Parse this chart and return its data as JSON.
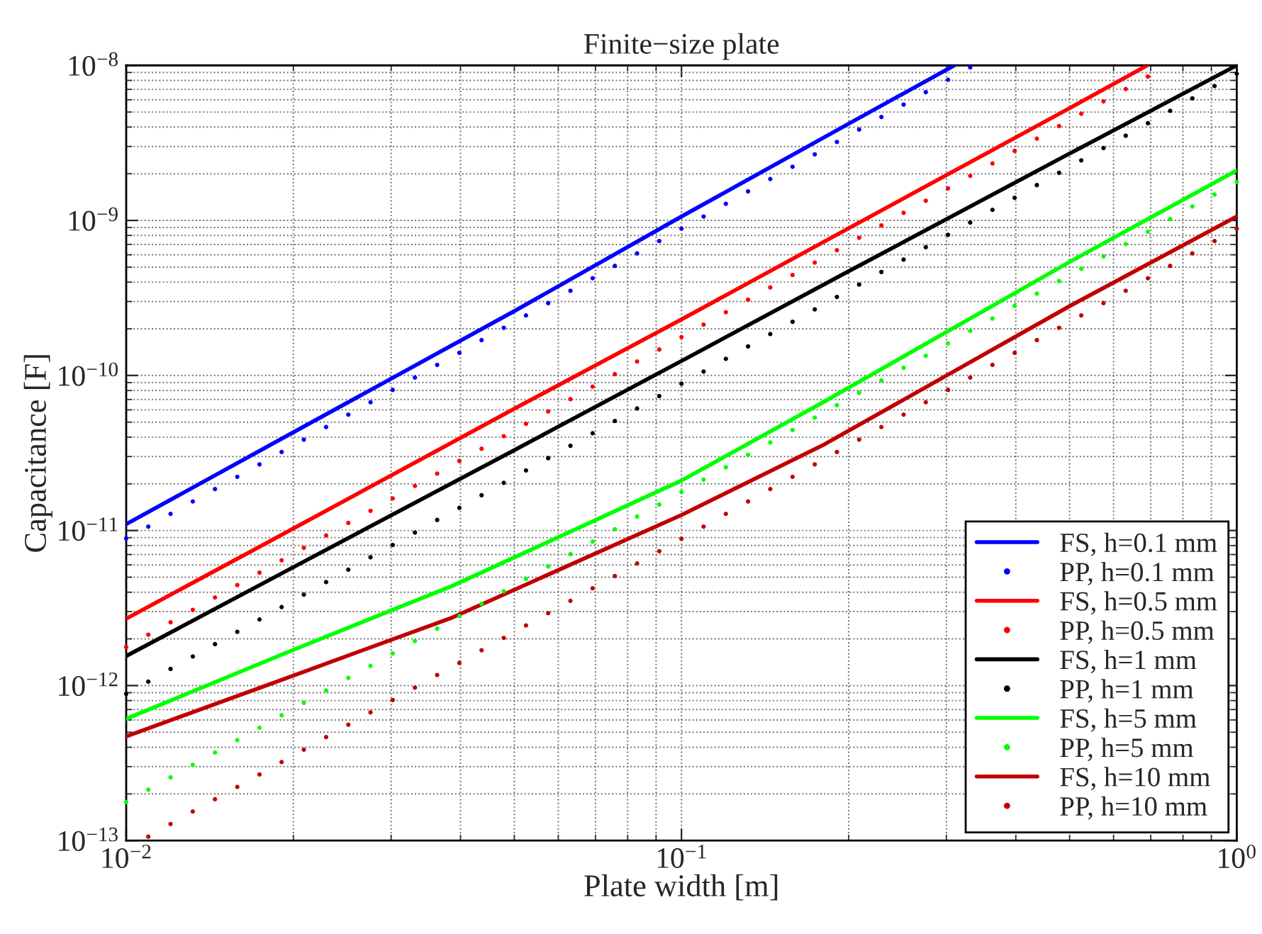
{
  "chart_data": {
    "type": "line",
    "title": "Finite−size plate",
    "xlabel": "Plate width [m]",
    "ylabel": "Capacitance [F]",
    "log": "xy",
    "grid": true,
    "legend": "bottom right",
    "xlim": [
      0.01,
      1
    ],
    "ylim": [
      1e-13,
      1e-08
    ],
    "xticks": [
      {
        "value": 0.01,
        "label": "10$^{−2}$"
      },
      {
        "value": 0.1,
        "label": "10$^{−1}$"
      },
      {
        "value": 1,
        "label": "10$^{0}$"
      }
    ],
    "yticks": [
      {
        "value": 1e-13,
        "label": "10$^{−13}$"
      },
      {
        "value": 1e-12,
        "label": "10$^{−12}$"
      },
      {
        "value": 1e-11,
        "label": "10$^{−11}$"
      },
      {
        "value": 1e-10,
        "label": "10$^{−10}$"
      },
      {
        "value": 1e-09,
        "label": "10$^{−9}$"
      },
      {
        "value": 1e-08,
        "label": "10$^{−8}$"
      }
    ],
    "x": [
      0.01,
      0.01096,
      0.01202,
      0.01318,
      0.01445,
      0.01585,
      0.01738,
      0.01905,
      0.02089,
      0.02291,
      0.02512,
      0.02754,
      0.0302,
      0.03311,
      0.03631,
      0.03981,
      0.04365,
      0.04786,
      0.05248,
      0.05754,
      0.0631,
      0.06918,
      0.07586,
      0.08318,
      0.0912,
      0.1,
      0.1096,
      0.1202,
      0.1318,
      0.1445,
      0.1585,
      0.1738,
      0.1905,
      0.2089,
      0.2291,
      0.2512,
      0.2754,
      0.302,
      0.3311,
      0.3631,
      0.3981,
      0.4365,
      0.4786,
      0.5248,
      0.5754,
      0.631,
      0.6918,
      0.7586,
      0.8318,
      0.912,
      1
    ],
    "series": [
      {
        "name": "FS, h=0.1 mm",
        "color": "#0000ff",
        "line_style": "solid",
        "x": [
          0.01,
          0.02,
          0.05,
          0.1,
          0.2,
          0.31
        ],
        "values": [
          1.1e-11,
          4.3e-11,
          2.6e-10,
          1.06e-09,
          4.2e-09,
          1e-08
        ]
      },
      {
        "name": "PP, h=0.1 mm",
        "type": "scatter",
        "marker": "circle",
        "color": "#0000ff",
        "values": [
          8.9e-12,
          1.06e-11,
          1.28e-11,
          1.54e-11,
          1.85e-11,
          2.22e-11,
          2.67e-11,
          3.21e-11,
          3.86e-11,
          4.65e-11,
          5.59e-11,
          6.72e-11,
          8.07e-11,
          9.7e-11,
          1.17e-10,
          1.4e-10,
          1.69e-10,
          2.03e-10,
          2.44e-10,
          2.93e-10,
          3.52e-10,
          4.24e-10,
          5.09e-10,
          6.13e-10,
          7.36e-10,
          8.85e-10,
          1.06e-09,
          1.28e-09,
          1.54e-09,
          1.85e-09,
          2.22e-09,
          2.67e-09,
          3.21e-09,
          3.86e-09,
          4.65e-09,
          5.59e-09,
          6.72e-09,
          8.07e-09,
          9.7e-09,
          null,
          null,
          null,
          null,
          null,
          null,
          null,
          null,
          null,
          null,
          null,
          null
        ]
      },
      {
        "name": "FS, h=0.5 mm",
        "color": "#ff0000",
        "line_style": "solid",
        "x": [
          0.01,
          0.02,
          0.05,
          0.1,
          0.2,
          0.5,
          0.69
        ],
        "values": [
          2.7e-12,
          1.03e-11,
          6.1e-11,
          2.3e-10,
          8.9e-10,
          5.3e-09,
          1e-08
        ]
      },
      {
        "name": "PP, h=0.5 mm",
        "type": "scatter",
        "marker": "circle",
        "color": "#ff0000",
        "values": [
          1.77e-12,
          2.13e-12,
          2.56e-12,
          3.08e-12,
          3.7e-12,
          4.45e-12,
          5.35e-12,
          6.43e-12,
          7.73e-12,
          9.29e-12,
          1.12e-11,
          1.34e-11,
          1.61e-11,
          1.94e-11,
          2.33e-11,
          2.81e-11,
          3.37e-11,
          4.06e-11,
          4.88e-11,
          5.86e-11,
          7.04e-11,
          8.47e-11,
          1.02e-10,
          1.23e-10,
          1.47e-10,
          1.77e-10,
          2.13e-10,
          2.56e-10,
          3.08e-10,
          3.7e-10,
          4.45e-10,
          5.35e-10,
          6.43e-10,
          7.73e-10,
          9.29e-10,
          1.12e-09,
          1.34e-09,
          1.61e-09,
          1.94e-09,
          2.33e-09,
          2.81e-09,
          3.37e-09,
          4.06e-09,
          4.88e-09,
          5.86e-09,
          7.04e-09,
          8.47e-09,
          null,
          null,
          null,
          null
        ]
      },
      {
        "name": "FS, h=1 mm",
        "color": "#000000",
        "line_style": "solid",
        "x": [
          0.01,
          0.02,
          0.05,
          0.1,
          0.2,
          0.5,
          1
        ],
        "values": [
          1.55e-12,
          5.8e-12,
          3.3e-11,
          1.24e-10,
          4.7e-10,
          2.7e-09,
          1e-08
        ]
      },
      {
        "name": "PP, h=1 mm",
        "type": "scatter",
        "marker": "circle",
        "color": "#000000",
        "values": [
          8.85e-13,
          1.06e-12,
          1.28e-12,
          1.54e-12,
          1.85e-12,
          2.22e-12,
          2.67e-12,
          3.21e-12,
          3.86e-12,
          4.65e-12,
          5.59e-12,
          6.72e-12,
          8.07e-12,
          9.7e-12,
          1.17e-11,
          1.4e-11,
          1.69e-11,
          2.03e-11,
          2.44e-11,
          2.93e-11,
          3.52e-11,
          4.24e-11,
          5.09e-11,
          6.13e-11,
          7.36e-11,
          8.85e-11,
          1.06e-10,
          1.28e-10,
          1.54e-10,
          1.85e-10,
          2.22e-10,
          2.67e-10,
          3.21e-10,
          3.86e-10,
          4.65e-10,
          5.59e-10,
          6.72e-10,
          8.07e-10,
          9.7e-10,
          1.17e-09,
          1.4e-09,
          1.69e-09,
          2.03e-09,
          2.44e-09,
          2.93e-09,
          3.52e-09,
          4.24e-09,
          5.09e-09,
          6.13e-09,
          7.36e-09,
          8.85e-09
        ]
      },
      {
        "name": "FS, h=5 mm",
        "color": "#00ff00",
        "line_style": "solid",
        "x": [
          0.01,
          0.02,
          0.0387,
          0.1,
          0.181,
          0.5,
          1
        ],
        "values": [
          6.1e-13,
          1.7e-12,
          4.4e-12,
          2.1e-11,
          6.8e-11,
          5.4e-10,
          2.1e-09
        ]
      },
      {
        "name": "PP, h=5 mm",
        "type": "scatter",
        "marker": "circle",
        "color": "#00ff00",
        "values": [
          1.77e-13,
          2.13e-13,
          2.56e-13,
          3.08e-13,
          3.7e-13,
          4.45e-13,
          5.35e-13,
          6.43e-13,
          7.73e-13,
          9.29e-13,
          1.12e-12,
          1.34e-12,
          1.61e-12,
          1.94e-12,
          2.33e-12,
          2.81e-12,
          3.37e-12,
          4.06e-12,
          4.88e-12,
          5.86e-12,
          7.04e-12,
          8.47e-12,
          1.02e-11,
          1.23e-11,
          1.47e-11,
          1.77e-11,
          2.13e-11,
          2.56e-11,
          3.08e-11,
          3.7e-11,
          4.45e-11,
          5.35e-11,
          6.43e-11,
          7.73e-11,
          9.29e-11,
          1.12e-10,
          1.34e-10,
          1.61e-10,
          1.94e-10,
          2.33e-10,
          2.81e-10,
          3.37e-10,
          4.06e-10,
          4.88e-10,
          5.86e-10,
          7.04e-10,
          8.47e-10,
          1.02e-09,
          1.23e-09,
          1.47e-09,
          1.77e-09
        ]
      },
      {
        "name": "FS, h=10 mm",
        "color": "#c00000",
        "line_style": "solid",
        "x": [
          0.01,
          0.02,
          0.0387,
          0.1,
          0.181,
          0.5,
          1
        ],
        "values": [
          4.7e-13,
          1.16e-12,
          2.75e-12,
          1.26e-11,
          3.6e-11,
          2.8e-10,
          1.06e-09
        ]
      },
      {
        "name": "PP, h=10 mm",
        "type": "scatter",
        "marker": "circle",
        "color": "#c00000",
        "values": [
          null,
          1.06e-13,
          1.28e-13,
          1.54e-13,
          1.85e-13,
          2.22e-13,
          2.67e-13,
          3.21e-13,
          3.86e-13,
          4.65e-13,
          5.59e-13,
          6.72e-13,
          8.07e-13,
          9.7e-13,
          1.17e-12,
          1.4e-12,
          1.69e-12,
          2.03e-12,
          2.44e-12,
          2.93e-12,
          3.52e-12,
          4.24e-12,
          5.09e-12,
          6.13e-12,
          7.36e-12,
          8.85e-12,
          1.06e-11,
          1.28e-11,
          1.54e-11,
          1.85e-11,
          2.22e-11,
          2.67e-11,
          3.21e-11,
          3.86e-11,
          4.65e-11,
          5.59e-11,
          6.72e-11,
          8.07e-11,
          9.7e-11,
          1.17e-10,
          1.4e-10,
          1.69e-10,
          2.03e-10,
          2.44e-10,
          2.93e-10,
          3.52e-10,
          4.24e-10,
          5.09e-10,
          6.13e-10,
          7.36e-10,
          8.85e-10
        ]
      }
    ]
  }
}
